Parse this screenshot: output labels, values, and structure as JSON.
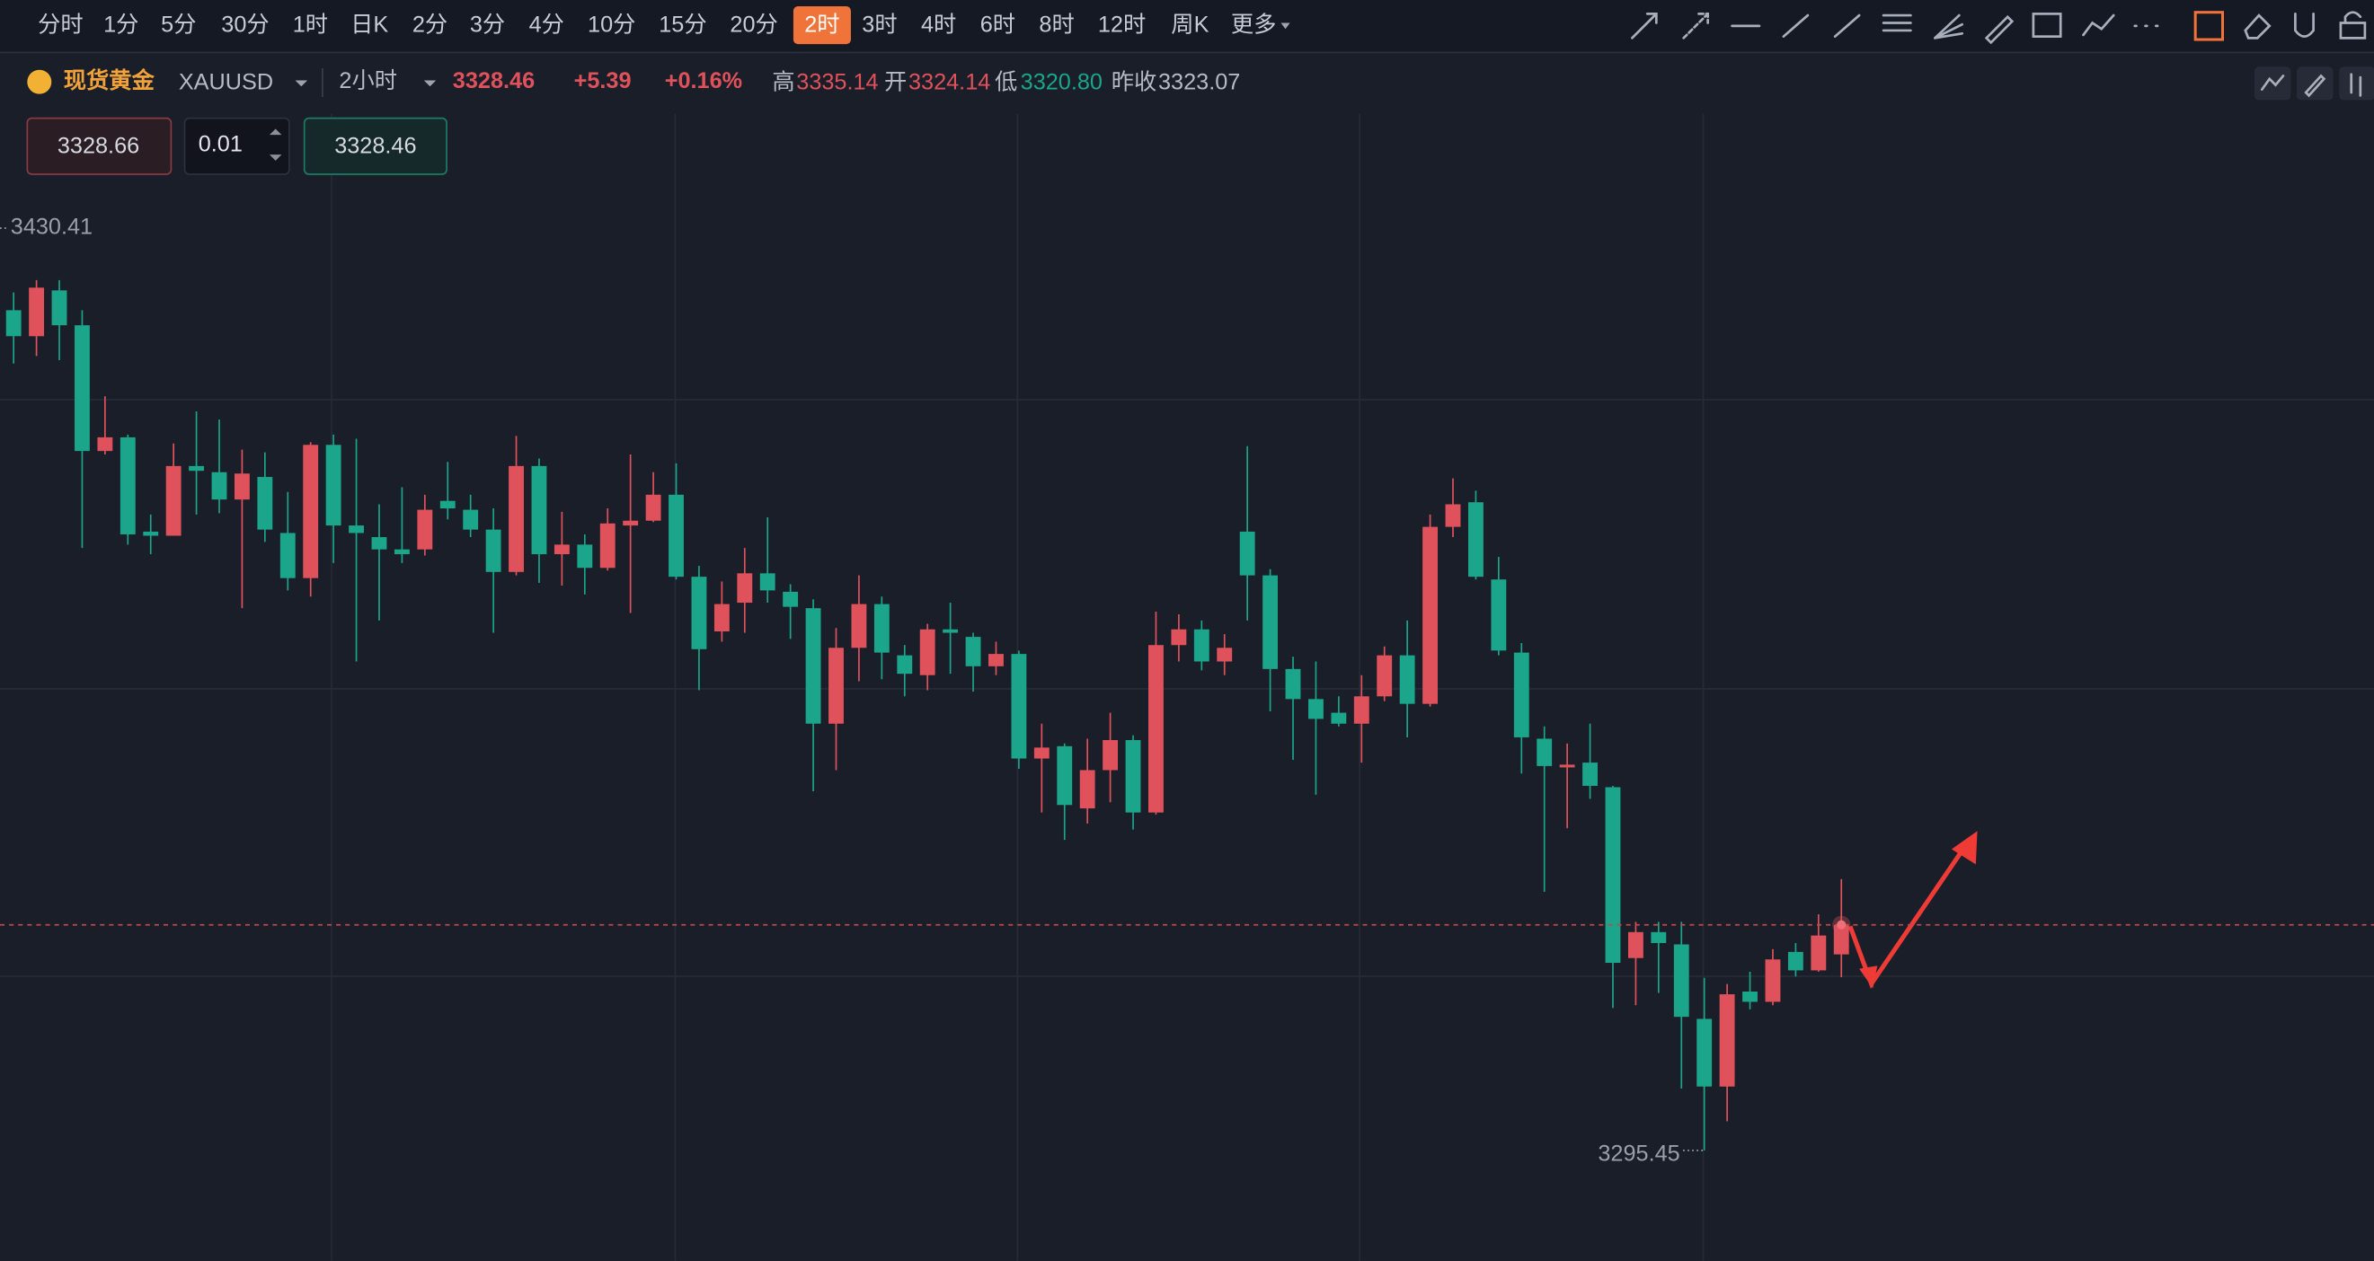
{
  "toolbar": {
    "periods": [
      "分时",
      "1分",
      "5分",
      "30分",
      "1时",
      "日K",
      "2分",
      "3分",
      "4分",
      "10分",
      "15分",
      "20分",
      "2时",
      "3时",
      "4时",
      "6时",
      "8时",
      "12时",
      "周K"
    ],
    "more": "更多",
    "active_period": 12
  },
  "quote": {
    "name": "现货黄金",
    "symbol": "XAUUSD",
    "period": "2小时",
    "price": 3328.46,
    "change": "+5.39",
    "change_pct": "+0.16%",
    "high_label": "高",
    "high": 3335.14,
    "open_label": "开",
    "open": 3324.14,
    "low_label": "低",
    "low": {
      "value": 3320.8,
      "label": "3320.80"
    },
    "prev_close_label": "昨收",
    "prev_close": 3323.07
  },
  "order": {
    "sell": "3328.66",
    "lots": "0.01",
    "buy": "3328.46"
  },
  "chart_data": {
    "type": "candlestick",
    "up_color": "#e0525b",
    "down_color": "#1ba58b",
    "ylim": [
      3279.3,
      3447.6
    ],
    "max_marker": 3430.41,
    "min_marker": 3295.45,
    "open": [
      3418.4,
      3414.6,
      3421.3,
      3416.2,
      3397.8,
      3399.8,
      3386.0,
      3385.4,
      3395.6,
      3394.7,
      3390.7,
      3394.0,
      3385.8,
      3379.2,
      3398.7,
      3386.9,
      3385.2,
      3383.4,
      3383.4,
      3390.5,
      3389.2,
      3386.3,
      3380.1,
      3395.6,
      3382.7,
      3384.1,
      3380.7,
      3386.9,
      3387.6,
      3391.4,
      3379.4,
      3371.4,
      3375.6,
      3379.9,
      3377.2,
      3374.8,
      3357.9,
      3369.0,
      3375.4,
      3367.9,
      3365.0,
      3371.7,
      3370.6,
      3366.3,
      3368.1,
      3352.8,
      3354.6,
      3345.5,
      3351.1,
      3355.5,
      3344.9,
      3369.4,
      3371.7,
      3367.0,
      3386.0,
      3379.6,
      3365.9,
      3361.5,
      3359.5,
      3357.9,
      3361.9,
      3367.9,
      3360.8,
      3386.7,
      3390.3,
      3379.0,
      3368.3,
      3355.7,
      3351.5,
      3352.2,
      3348.6,
      3323.6,
      3327.4,
      3325.6,
      3314.7,
      3304.8,
      3318.7,
      3317.2,
      3324.5,
      3321.8
    ],
    "high": [
      3421.0,
      3422.8,
      3422.8,
      3418.4,
      3405.8,
      3400.2,
      3388.5,
      3398.9,
      3403.6,
      3402.4,
      3398.0,
      3397.6,
      3391.8,
      3399.1,
      3400.2,
      3399.6,
      3390.0,
      3392.5,
      3391.4,
      3396.2,
      3391.4,
      3389.4,
      3400.0,
      3396.7,
      3388.9,
      3385.6,
      3389.4,
      3397.3,
      3394.7,
      3396.0,
      3381.0,
      3378.7,
      3383.6,
      3388.1,
      3378.3,
      3376.1,
      3371.9,
      3379.6,
      3376.5,
      3369.4,
      3372.5,
      3375.6,
      3371.2,
      3369.9,
      3368.6,
      3357.9,
      3355.0,
      3355.7,
      3359.5,
      3356.2,
      3374.3,
      3373.9,
      3373.0,
      3371.0,
      3398.5,
      3380.5,
      3367.7,
      3367.0,
      3361.9,
      3365.0,
      3369.2,
      3373.0,
      3388.5,
      3393.8,
      3392.0,
      3382.3,
      3369.7,
      3357.5,
      3355.0,
      3357.9,
      3348.8,
      3328.9,
      3328.9,
      3328.9,
      3320.7,
      3319.8,
      3321.6,
      3324.9,
      3325.8,
      3330.0
    ],
    "low": [
      3410.6,
      3411.7,
      3411.1,
      3383.6,
      3397.3,
      3384.1,
      3382.7,
      3385.4,
      3388.5,
      3388.7,
      3374.8,
      3384.5,
      3377.4,
      3376.5,
      3381.4,
      3367.0,
      3373.0,
      3381.4,
      3382.5,
      3387.8,
      3385.2,
      3371.2,
      3379.6,
      3378.5,
      3378.1,
      3376.8,
      3380.3,
      3374.1,
      3387.4,
      3379.0,
      3362.8,
      3369.9,
      3371.2,
      3375.6,
      3370.3,
      3348.0,
      3351.1,
      3364.1,
      3364.4,
      3361.9,
      3362.8,
      3365.2,
      3362.6,
      3365.0,
      3351.3,
      3344.9,
      3340.9,
      3343.3,
      3346.4,
      3342.4,
      3344.6,
      3367.0,
      3365.7,
      3365.0,
      3373.0,
      3359.7,
      3352.6,
      3347.5,
      3357.5,
      3352.2,
      3361.2,
      3355.9,
      3360.4,
      3385.2,
      3379.0,
      3367.9,
      3350.6,
      3333.3,
      3342.6,
      3346.9,
      3316.3,
      3316.7,
      3318.5,
      3304.5,
      3295.45,
      3299.7,
      3316.1,
      3316.7,
      3320.9,
      3321.6
    ],
    "close": [
      3414.6,
      3421.7,
      3416.2,
      3397.8,
      3399.8,
      3385.6,
      3385.4,
      3395.6,
      3394.9,
      3390.7,
      3394.5,
      3386.3,
      3379.2,
      3398.7,
      3386.9,
      3385.8,
      3383.4,
      3382.7,
      3389.2,
      3389.4,
      3386.3,
      3380.1,
      3395.6,
      3382.7,
      3384.1,
      3380.7,
      3387.2,
      3387.6,
      3391.4,
      3379.4,
      3368.8,
      3375.4,
      3379.9,
      3377.4,
      3375.0,
      3357.9,
      3369.0,
      3375.4,
      3368.3,
      3365.2,
      3371.7,
      3371.2,
      3366.3,
      3368.1,
      3352.8,
      3354.4,
      3346.0,
      3351.1,
      3355.5,
      3344.9,
      3369.4,
      3371.7,
      3367.0,
      3369.0,
      3379.6,
      3365.9,
      3361.5,
      3358.6,
      3357.9,
      3361.9,
      3367.9,
      3360.8,
      3386.7,
      3390.0,
      3379.4,
      3368.6,
      3355.9,
      3351.7,
      3351.9,
      3348.8,
      3322.9,
      3327.4,
      3325.8,
      3315.0,
      3304.8,
      3318.3,
      3317.2,
      3323.4,
      3321.8,
      3326.9
    ]
  }
}
